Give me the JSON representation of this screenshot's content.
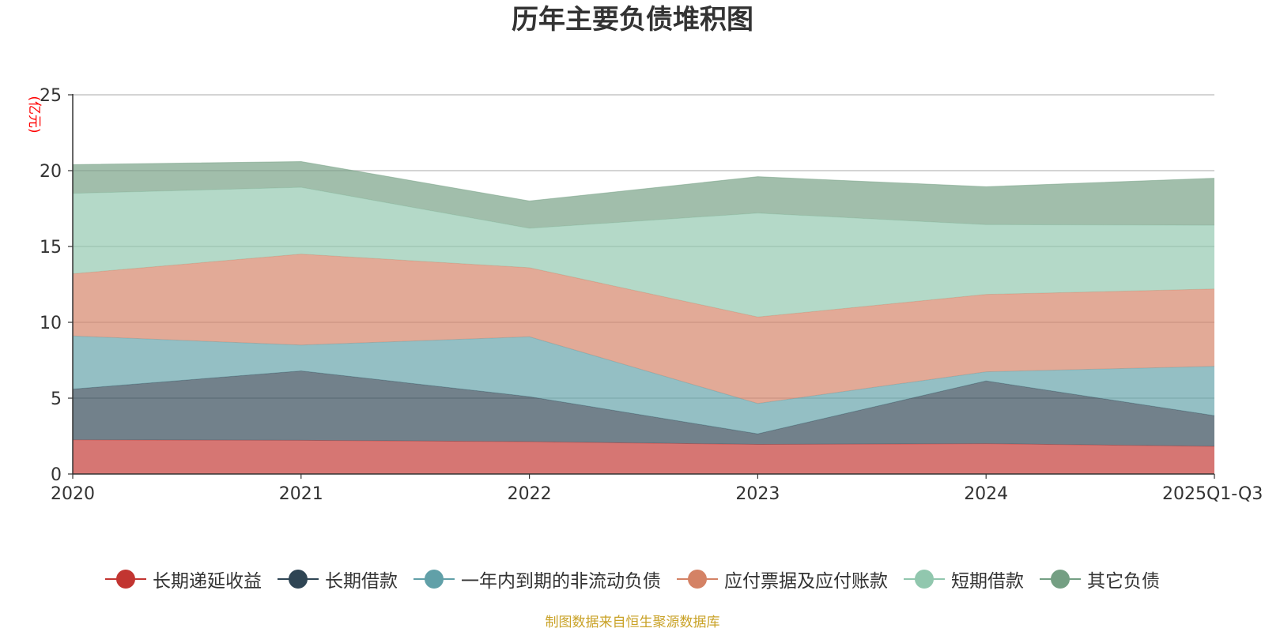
{
  "chart_data": {
    "type": "area",
    "stacked": true,
    "title": "历年主要负债堆积图",
    "ylabel": "(亿元)",
    "xlabel": "",
    "ylim": [
      0,
      25
    ],
    "yticks": [
      0,
      5,
      10,
      15,
      20,
      25
    ],
    "grid": true,
    "legend_position": "bottom",
    "categories": [
      "2020",
      "2021",
      "2022",
      "2023",
      "2024",
      "2025Q1-Q3"
    ],
    "series": [
      {
        "name": "长期递延收益",
        "color": "#c23531",
        "values": [
          2.25,
          2.22,
          2.13,
          1.95,
          2.0,
          1.82
        ]
      },
      {
        "name": "长期借款",
        "color": "#2f4554",
        "values": [
          3.35,
          4.58,
          2.97,
          0.7,
          4.14,
          2.03
        ]
      },
      {
        "name": "一年内到期的非流动负债",
        "color": "#61a0a8",
        "values": [
          3.5,
          1.7,
          3.95,
          2.0,
          0.6,
          3.25
        ]
      },
      {
        "name": "应付票据及应付账款",
        "color": "#d48265",
        "values": [
          4.1,
          6.0,
          4.55,
          5.7,
          5.1,
          5.1
        ]
      },
      {
        "name": "短期借款",
        "color": "#91c7ae",
        "values": [
          5.3,
          4.4,
          2.6,
          6.85,
          4.6,
          4.2
        ]
      },
      {
        "name": "其它负债",
        "color": "#749f83",
        "values": [
          1.9,
          1.7,
          1.8,
          2.4,
          2.5,
          3.1
        ]
      }
    ]
  },
  "source_note": "制图数据来自恒生聚源数据库"
}
